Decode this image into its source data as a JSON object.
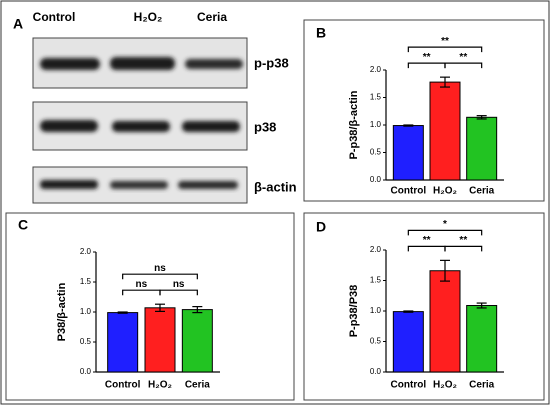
{
  "blot": {
    "label": "A",
    "columns": [
      "Control",
      "H₂O₂",
      "Ceria"
    ],
    "rows": [
      "p-p38",
      "p38",
      "β-actin"
    ]
  },
  "chart_data": [
    {
      "type": "bar",
      "panel": "B",
      "ylabel": "P-p38/β-actin",
      "categories": [
        "Control",
        "H₂O₂",
        "Ceria"
      ],
      "values": [
        0.99,
        1.78,
        1.14
      ],
      "errors": [
        0.01,
        0.09,
        0.03
      ],
      "colors": [
        "#1f1fff",
        "#ff1f1f",
        "#22c322"
      ],
      "ylim": [
        0,
        2
      ],
      "yticks": [
        {
          "value": 0,
          "label": "0.0"
        },
        {
          "value": 0.5,
          "label": "0.5"
        },
        {
          "value": 1,
          "label": "1.0"
        },
        {
          "value": 1.5,
          "label": "1.5"
        },
        {
          "value": 2,
          "label": "2.0"
        }
      ],
      "annotations": [
        {
          "text": "**",
          "pair": [
            0,
            2
          ]
        },
        {
          "text": "**",
          "pair": [
            0,
            1
          ]
        },
        {
          "text": "**",
          "pair": [
            1,
            2
          ]
        }
      ]
    },
    {
      "type": "bar",
      "panel": "C",
      "ylabel": "P38/β-actin",
      "categories": [
        "Control",
        "H₂O₂",
        "Ceria"
      ],
      "values": [
        0.99,
        1.07,
        1.04
      ],
      "errors": [
        0.01,
        0.06,
        0.05
      ],
      "colors": [
        "#1f1fff",
        "#ff1f1f",
        "#22c322"
      ],
      "ylim": [
        0,
        2
      ],
      "yticks": [
        {
          "value": 0,
          "label": "0.0"
        },
        {
          "value": 0.5,
          "label": "0.5"
        },
        {
          "value": 1,
          "label": "1.0"
        },
        {
          "value": 1.5,
          "label": "1.5"
        },
        {
          "value": 2,
          "label": "2.0"
        }
      ],
      "annotations": [
        {
          "text": "ns",
          "pair": [
            0,
            2
          ]
        },
        {
          "text": "ns",
          "pair": [
            0,
            1
          ]
        },
        {
          "text": "ns",
          "pair": [
            1,
            2
          ]
        }
      ]
    },
    {
      "type": "bar",
      "panel": "D",
      "ylabel": "P-p38/P38",
      "categories": [
        "Control",
        "H₂O₂",
        "Ceria"
      ],
      "values": [
        0.99,
        1.66,
        1.09
      ],
      "errors": [
        0.01,
        0.17,
        0.04
      ],
      "colors": [
        "#1f1fff",
        "#ff1f1f",
        "#22c322"
      ],
      "ylim": [
        0,
        2
      ],
      "yticks": [
        {
          "value": 0,
          "label": "0.0"
        },
        {
          "value": 0.5,
          "label": "0.5"
        },
        {
          "value": 1,
          "label": "1.0"
        },
        {
          "value": 1.5,
          "label": "1.5"
        },
        {
          "value": 2,
          "label": "2.0"
        }
      ],
      "annotations": [
        {
          "text": "*",
          "pair": [
            0,
            2
          ]
        },
        {
          "text": "**",
          "pair": [
            0,
            1
          ]
        },
        {
          "text": "**",
          "pair": [
            1,
            2
          ]
        }
      ]
    }
  ]
}
